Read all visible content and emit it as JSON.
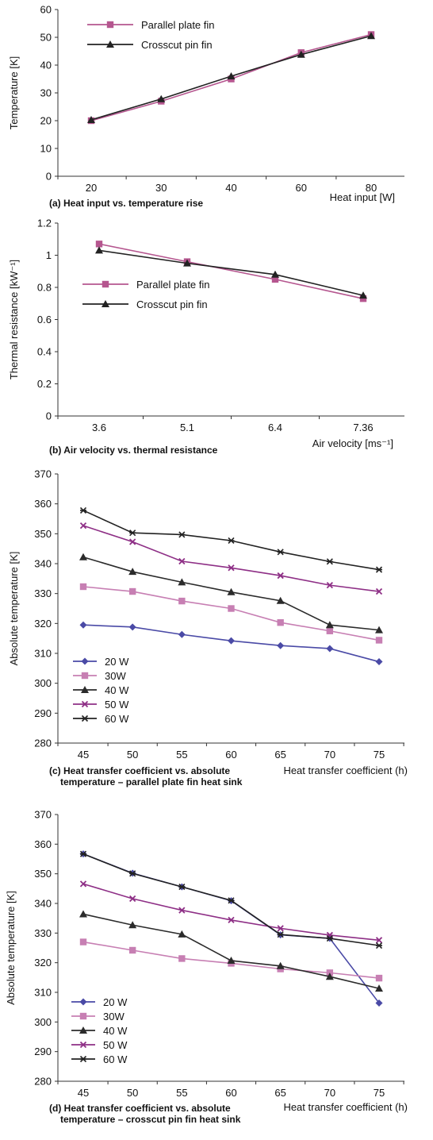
{
  "chart_data": [
    {
      "type": "line",
      "caption": "(a) Heat input vs. temperature rise",
      "xlabel": "Heat input [W]",
      "ylabel": "Temperature [K]",
      "categories": [
        "20",
        "30",
        "40",
        "60",
        "80"
      ],
      "ylim": [
        0,
        60
      ],
      "yticks": [
        0,
        10,
        20,
        30,
        40,
        50,
        60
      ],
      "legend_position": "top-left",
      "series": [
        {
          "name": "Parallel plate fin",
          "color": "#b5568f",
          "marker": "square",
          "values": [
            20,
            27,
            35,
            44.5,
            51
          ]
        },
        {
          "name": "Crosscut pin fin",
          "color": "#222222",
          "marker": "triangle",
          "values": [
            20.3,
            27.8,
            36,
            43.8,
            50.5
          ]
        }
      ]
    },
    {
      "type": "line",
      "caption": "(b) Air velocity vs. thermal resistance",
      "xlabel": "Air velocity [ms⁻¹]",
      "ylabel": "Thermal resistance [kW⁻¹]",
      "categories": [
        "3.6",
        "5.1",
        "6.4",
        "7.36"
      ],
      "ylim": [
        0,
        1.2
      ],
      "yticks": [
        "0",
        "0.2",
        "0.4",
        "0.6",
        "0.8",
        "1",
        "1.2"
      ],
      "legend_position": "center-left",
      "series": [
        {
          "name": "Parallel plate fin",
          "color": "#b5568f",
          "marker": "square",
          "values": [
            1.07,
            0.96,
            0.85,
            0.73
          ]
        },
        {
          "name": "Crosscut pin fin",
          "color": "#222222",
          "marker": "triangle",
          "values": [
            1.03,
            0.95,
            0.88,
            0.75
          ]
        }
      ]
    },
    {
      "type": "line",
      "caption": "(c) Heat transfer coefficient vs. absolute temperature – parallel plate fin heat sink",
      "xlabel": "Heat transfer coefficient (h)",
      "ylabel": "Absolute temperature [K]",
      "categories": [
        "45",
        "50",
        "55",
        "60",
        "65",
        "70",
        "75"
      ],
      "ylim": [
        280,
        370
      ],
      "yticks": [
        280,
        290,
        300,
        310,
        320,
        330,
        340,
        350,
        360,
        370
      ],
      "legend_position": "bottom-left",
      "series": [
        {
          "name": "20 W",
          "color": "#4a4aa6",
          "marker": "diamond",
          "values": [
            319.5,
            318.8,
            316.3,
            314.2,
            312.6,
            311.6,
            307.2
          ]
        },
        {
          "name": "30W",
          "color": "#c77fb3",
          "marker": "square",
          "values": [
            332.3,
            330.7,
            327.5,
            325,
            320.3,
            317.5,
            314.4
          ]
        },
        {
          "name": "40 W",
          "color": "#2b2b2b",
          "marker": "triangle",
          "values": [
            342.2,
            337.3,
            333.8,
            330.5,
            327.6,
            319.5,
            317.8
          ]
        },
        {
          "name": "50 W",
          "color": "#8e2f86",
          "marker": "x",
          "values": [
            352.7,
            347.3,
            340.8,
            338.6,
            336,
            332.8,
            330.7
          ]
        },
        {
          "name": "60 W",
          "color": "#222222",
          "marker": "star",
          "values": [
            357.8,
            350.3,
            349.7,
            347.7,
            343.9,
            340.7,
            338
          ]
        }
      ]
    },
    {
      "type": "line",
      "caption": "(d) Heat transfer coefficient vs. absolute temperature – crosscut pin fin heat sink",
      "xlabel": "Heat transfer coefficient (h)",
      "ylabel": "Absolute temperature [K]",
      "categories": [
        "45",
        "50",
        "55",
        "60",
        "65",
        "70",
        "75"
      ],
      "ylim": [
        280,
        370
      ],
      "yticks": [
        280,
        290,
        300,
        310,
        320,
        330,
        340,
        350,
        360,
        370
      ],
      "legend_position": "bottom-left",
      "series": [
        {
          "name": "20 W",
          "color": "#4a4aa6",
          "marker": "diamond",
          "values": [
            356.7,
            350.2,
            345.6,
            340.9,
            329.4,
            328.2,
            306.4
          ]
        },
        {
          "name": "30W",
          "color": "#c77fb3",
          "marker": "square",
          "values": [
            327,
            324.2,
            321.4,
            319.8,
            317.9,
            316.6,
            314.8
          ]
        },
        {
          "name": "40 W",
          "color": "#2b2b2b",
          "marker": "triangle",
          "values": [
            336.4,
            332.7,
            329.6,
            320.7,
            318.9,
            315.3,
            311.3
          ]
        },
        {
          "name": "50 W",
          "color": "#8e2f86",
          "marker": "x",
          "values": [
            346.6,
            341.6,
            337.7,
            334.4,
            331.6,
            329.3,
            327.6
          ]
        },
        {
          "name": "60 W",
          "color": "#222222",
          "marker": "star",
          "values": [
            356.7,
            350.1,
            345.6,
            341,
            329.5,
            328.2,
            325.8
          ]
        }
      ]
    }
  ]
}
